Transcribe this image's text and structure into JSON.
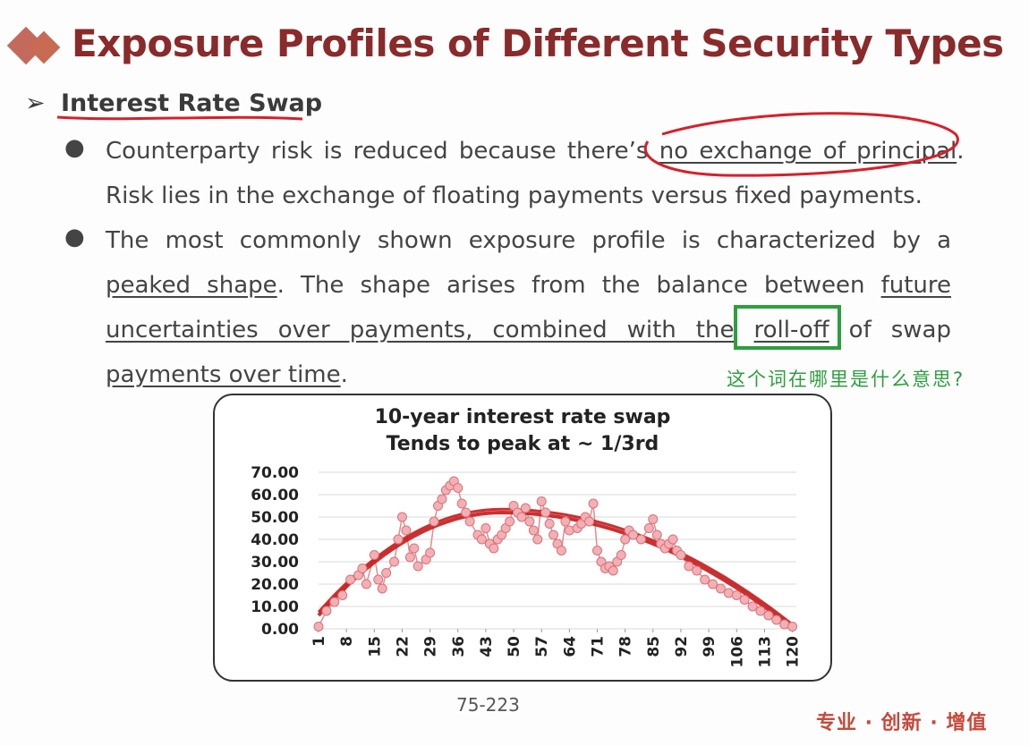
{
  "title": "Exposure Profiles of Different Security Types",
  "section": {
    "marker": "➢",
    "label": "Interest Rate Swap"
  },
  "bullets": [
    {
      "dot": "●",
      "line1_pre": "Counterparty risk is reduced because there’s ",
      "line1_ul": "no exchange of principal",
      "line1_post": ".",
      "line2": "Risk lies in the exchange of floating payments versus fixed payments."
    },
    {
      "dot": "●",
      "text1": "The most commonly shown exposure profile is characterized by a ",
      "ul1": "peaked shape",
      "text2": ". The shape arises from the balance between ",
      "ul2a": "future",
      "ul2b": "uncertainties over payments, combined with the",
      "ul_rolloff": "roll-off",
      "text3": " of swap",
      "ul3": "payments over time",
      "text4": "."
    }
  ],
  "annotation": {
    "question": "这个词在哪里是什么意思?"
  },
  "chart_data": {
    "type": "scatter",
    "title": "10-year interest rate swap",
    "subtitle": "Tends to peak at ~ 1/3rd",
    "ylim": [
      0,
      70
    ],
    "yticks": [
      "70.00",
      "60.00",
      "50.00",
      "40.00",
      "30.00",
      "20.00",
      "10.00",
      "0.00"
    ],
    "xlim": [
      1,
      121
    ],
    "xticks": [
      "1",
      "8",
      "15",
      "22",
      "29",
      "36",
      "43",
      "50",
      "57",
      "64",
      "71",
      "78",
      "85",
      "92",
      "99",
      "106",
      "113",
      "120"
    ],
    "grid": true,
    "x": [
      1,
      3,
      5,
      7,
      9,
      11,
      12,
      13,
      15,
      16,
      17,
      18,
      20,
      21,
      22,
      23,
      24,
      25,
      26,
      28,
      29,
      30,
      31,
      32,
      33,
      34,
      35,
      36,
      37,
      38,
      39,
      41,
      42,
      43,
      44,
      45,
      46,
      47,
      48,
      49,
      50,
      51,
      52,
      53,
      54,
      55,
      56,
      57,
      58,
      59,
      60,
      61,
      62,
      63,
      64,
      66,
      67,
      68,
      69,
      70,
      71,
      72,
      73,
      74,
      75,
      76,
      77,
      78,
      79,
      80,
      82,
      84,
      85,
      86,
      87,
      88,
      89,
      90,
      91,
      92,
      94,
      96,
      98,
      100,
      102,
      104,
      106,
      108,
      110,
      112,
      114,
      116,
      118,
      120
    ],
    "y": [
      1,
      8,
      12,
      15,
      22,
      24,
      27,
      20,
      33,
      22,
      18,
      25,
      30,
      40,
      50,
      44,
      32,
      36,
      28,
      31,
      34,
      48,
      55,
      58,
      62,
      64,
      66,
      63,
      56,
      52,
      48,
      42,
      40,
      45,
      38,
      36,
      40,
      42,
      45,
      48,
      55,
      52,
      50,
      54,
      48,
      44,
      40,
      57,
      52,
      47,
      42,
      38,
      35,
      48,
      44,
      45,
      47,
      50,
      48,
      56,
      35,
      30,
      27,
      28,
      26,
      30,
      33,
      40,
      44,
      42,
      40,
      45,
      49,
      42,
      38,
      36,
      38,
      40,
      35,
      33,
      28,
      26,
      22,
      20,
      18,
      16,
      15,
      13,
      10,
      8,
      6,
      4,
      2,
      1
    ],
    "series": [
      {
        "values_note_free": true,
        "fit_peak_x": 47,
        "fit_peak_y": 52
      }
    ]
  },
  "page_number": "75-223",
  "footer": "专业 · 创新 · 增值",
  "colors": {
    "title": "#8a2a2a",
    "accent_green": "#2e9e3f",
    "pen_red": "#d6202a",
    "fit_red": "#c51a1a",
    "point": "#f0a0a6"
  }
}
